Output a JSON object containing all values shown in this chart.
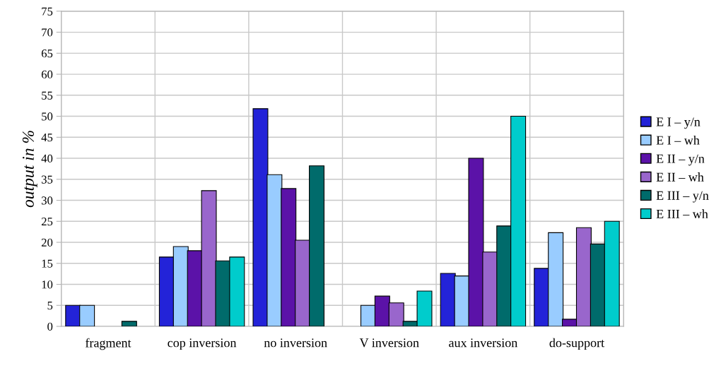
{
  "chart_data": {
    "type": "bar",
    "ylabel": "output in %",
    "categories": [
      "fragment",
      "cop inversion",
      "no inversion",
      "V inversion",
      "aux inversion",
      "do-support"
    ],
    "series": [
      {
        "name": "E I – y/n",
        "color": "#2323d8",
        "values": [
          5,
          16.5,
          51.8,
          null,
          12.6,
          13.8
        ]
      },
      {
        "name": "E I – wh",
        "color": "#99ccff",
        "values": [
          5,
          19,
          36.1,
          5,
          12,
          22.3
        ]
      },
      {
        "name": "E II – y/n",
        "color": "#5b12a8",
        "values": [
          null,
          18,
          32.8,
          7.2,
          40,
          1.7
        ]
      },
      {
        "name": "E II – wh",
        "color": "#9966cc",
        "values": [
          null,
          32.3,
          20.5,
          5.6,
          17.7,
          23.5
        ]
      },
      {
        "name": "E III – y/n",
        "color": "#006b6b",
        "values": [
          1.2,
          15.6,
          38.2,
          1.2,
          23.9,
          19.6
        ]
      },
      {
        "name": "E III – wh",
        "color": "#00cccc",
        "values": [
          null,
          16.5,
          null,
          8.4,
          50,
          25
        ]
      }
    ],
    "ylim": [
      0,
      75
    ],
    "yticks": [
      0,
      5,
      10,
      15,
      20,
      25,
      30,
      35,
      40,
      45,
      50,
      55,
      60,
      65,
      70,
      75
    ],
    "grid": true,
    "legend": "right"
  }
}
